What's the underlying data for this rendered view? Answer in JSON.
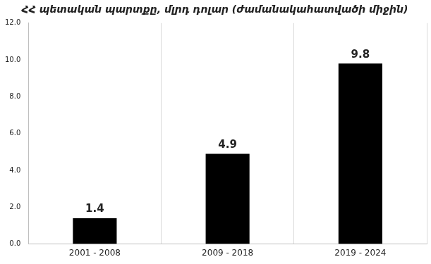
{
  "chart_data": {
    "type": "bar",
    "title": "ՀՀ պետական պարտքը, մլրդ դոլար (ժամանակահատվածի միջին)",
    "categories": [
      "2001 - 2008",
      "2009 - 2018",
      "2019 - 2024"
    ],
    "values": [
      1.4,
      4.9,
      9.8
    ],
    "color": "#000000",
    "ylim": [
      0,
      12
    ],
    "yticks": [
      {
        "value": 0,
        "label": "0.0"
      },
      {
        "value": 2,
        "label": "2.0"
      },
      {
        "value": 4,
        "label": "4.0"
      },
      {
        "value": 6,
        "label": "6.0"
      },
      {
        "value": 8,
        "label": "8.0"
      },
      {
        "value": 10,
        "label": "10.0"
      },
      {
        "value": 12,
        "label": "12.0"
      }
    ],
    "grid": true,
    "data_labels": true
  }
}
